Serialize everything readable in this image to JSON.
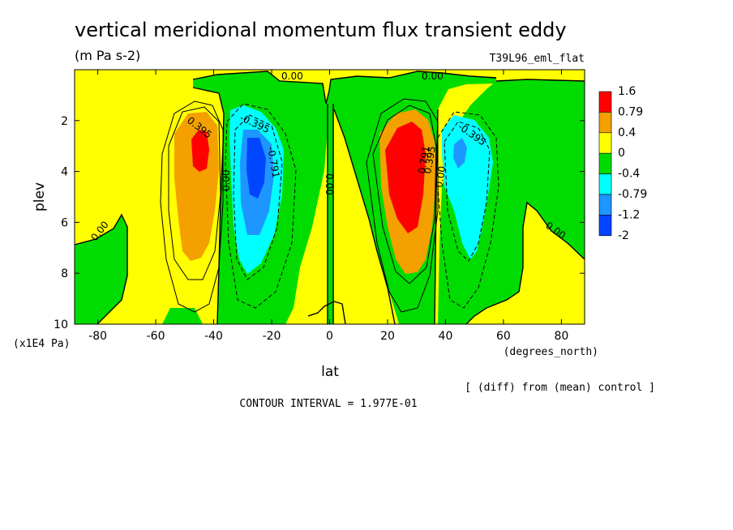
{
  "chart_data": {
    "type": "contour",
    "title": "vertical meridional momentum flux transient eddy",
    "units": "(m Pa s-2)",
    "experiment": "T39L96_eml_flat",
    "xlabel": "lat",
    "xunits": "(degrees_north)",
    "ylabel": "plev",
    "yunits": "(x1E4 Pa)",
    "xlim": [
      -88,
      88
    ],
    "ylim": [
      10,
      0
    ],
    "xticks": [
      -80,
      -60,
      -40,
      -20,
      0,
      20,
      40,
      60,
      80
    ],
    "yticks": [
      2,
      4,
      6,
      8,
      10
    ],
    "note": "[ (diff) from (mean) control ]",
    "contour_interval_text": "CONTOUR INTERVAL = 1.977E-01",
    "contour_labels": [
      "0.00",
      "0.00",
      "0.395",
      "0.00",
      "-0.395",
      "-0.791",
      "0.00",
      "0.791",
      "0.395",
      "0.00",
      "-0.395",
      "0.00"
    ],
    "colorbar": {
      "labels": [
        "1.6",
        "0.79",
        "0.4",
        "0",
        "-0.4",
        "-0.79",
        "-1.2",
        "-2"
      ],
      "colors": [
        "#ff0000",
        "#f3a000",
        "#ffff00",
        "#00dc00",
        "#00ffff",
        "#1e96ff",
        "#0046ff"
      ]
    },
    "features": [
      {
        "name": "sh-positive-max",
        "lat": -45,
        "plev": 3.5,
        "max": 1.2
      },
      {
        "name": "sh-negative-min",
        "lat": -27,
        "plev": 4.0,
        "min": -1.2
      },
      {
        "name": "nh-positive-max",
        "lat": 27,
        "plev": 4.0,
        "max": 1.6
      },
      {
        "name": "nh-negative-min",
        "lat": 45,
        "plev": 3.2,
        "min": -0.8
      }
    ]
  }
}
